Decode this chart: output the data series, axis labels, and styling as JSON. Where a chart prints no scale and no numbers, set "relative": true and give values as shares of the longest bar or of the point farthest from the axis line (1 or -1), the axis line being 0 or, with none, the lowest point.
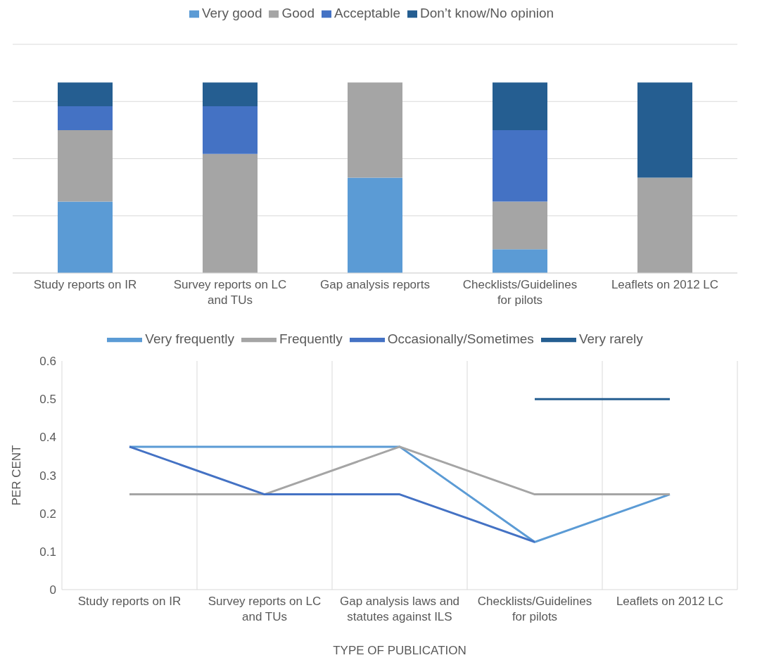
{
  "chart_data": [
    {
      "type": "bar",
      "stacked": true,
      "relative": true,
      "grid": "y",
      "legend": "top",
      "categories": [
        "Study reports on IR",
        "Survey reports on LC and TUs",
        "Gap analysis reports",
        "Checklists/Guidelines for pilots",
        "Leaflets on 2012 LC"
      ],
      "series": [
        {
          "name": "Very good",
          "color": "#5b9bd5",
          "values": [
            0.375,
            0,
            0.5,
            0.125,
            0
          ]
        },
        {
          "name": "Good",
          "color": "#a5a5a5",
          "values": [
            0.375,
            0.625,
            0.5,
            0.25,
            0.5
          ]
        },
        {
          "name": "Acceptable",
          "color": "#4472c4",
          "values": [
            0.125,
            0.25,
            0,
            0.375,
            0
          ]
        },
        {
          "name": "Don’t know/No opinion",
          "color": "#255e91",
          "values": [
            0.125,
            0.125,
            0,
            0.25,
            0.5
          ]
        }
      ]
    },
    {
      "type": "line",
      "grid": "x",
      "legend": "top",
      "line_style": "solid",
      "marker": "none",
      "xlabel": "TYPE OF PUBLICATION",
      "ylabel": "PER CENT",
      "ylim": [
        0,
        0.6
      ],
      "yticks": [
        0,
        0.1,
        0.2,
        0.3,
        0.4,
        0.5,
        0.6
      ],
      "categories": [
        "Study reports on IR",
        "Survey reports on LC and TUs",
        "Gap analysis laws and statutes against ILS",
        "Checklists/Guidelines for pilots",
        "Leaflets on 2012 LC"
      ],
      "series": [
        {
          "name": "Very frequently",
          "color": "#5b9bd5",
          "values": [
            0.375,
            0.375,
            0.375,
            0.125,
            0.25
          ]
        },
        {
          "name": "Frequently",
          "color": "#a5a5a5",
          "values": [
            0.25,
            0.25,
            0.375,
            0.25,
            0.25
          ]
        },
        {
          "name": "Occasionally/Sometimes",
          "color": "#4472c4",
          "values": [
            0.375,
            0.25,
            0.25,
            0.125,
            null
          ]
        },
        {
          "name": "Very rarely",
          "color": "#255e91",
          "values": [
            null,
            null,
            null,
            0.5,
            0.5
          ]
        }
      ]
    }
  ]
}
